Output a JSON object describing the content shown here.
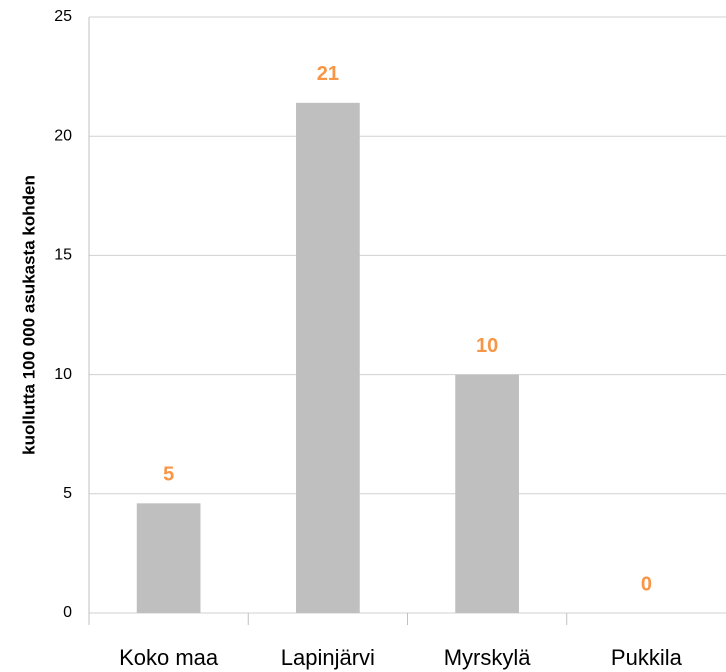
{
  "chart_data": {
    "type": "bar",
    "y_axis_label": "kuollutta 100 000 asukasta kohden",
    "categories": [
      "Koko maa",
      "Lapinjärvi",
      "Myrskylä",
      "Pukkila"
    ],
    "values": [
      4.6,
      21.4,
      10,
      0
    ],
    "value_labels": [
      "5",
      "21",
      "10",
      "0"
    ],
    "color": "#bfbfbf",
    "label_color": "#f79646",
    "ylim": [
      0,
      25
    ],
    "yticks": [
      0,
      5,
      10,
      15,
      20,
      25
    ],
    "grid": true
  }
}
